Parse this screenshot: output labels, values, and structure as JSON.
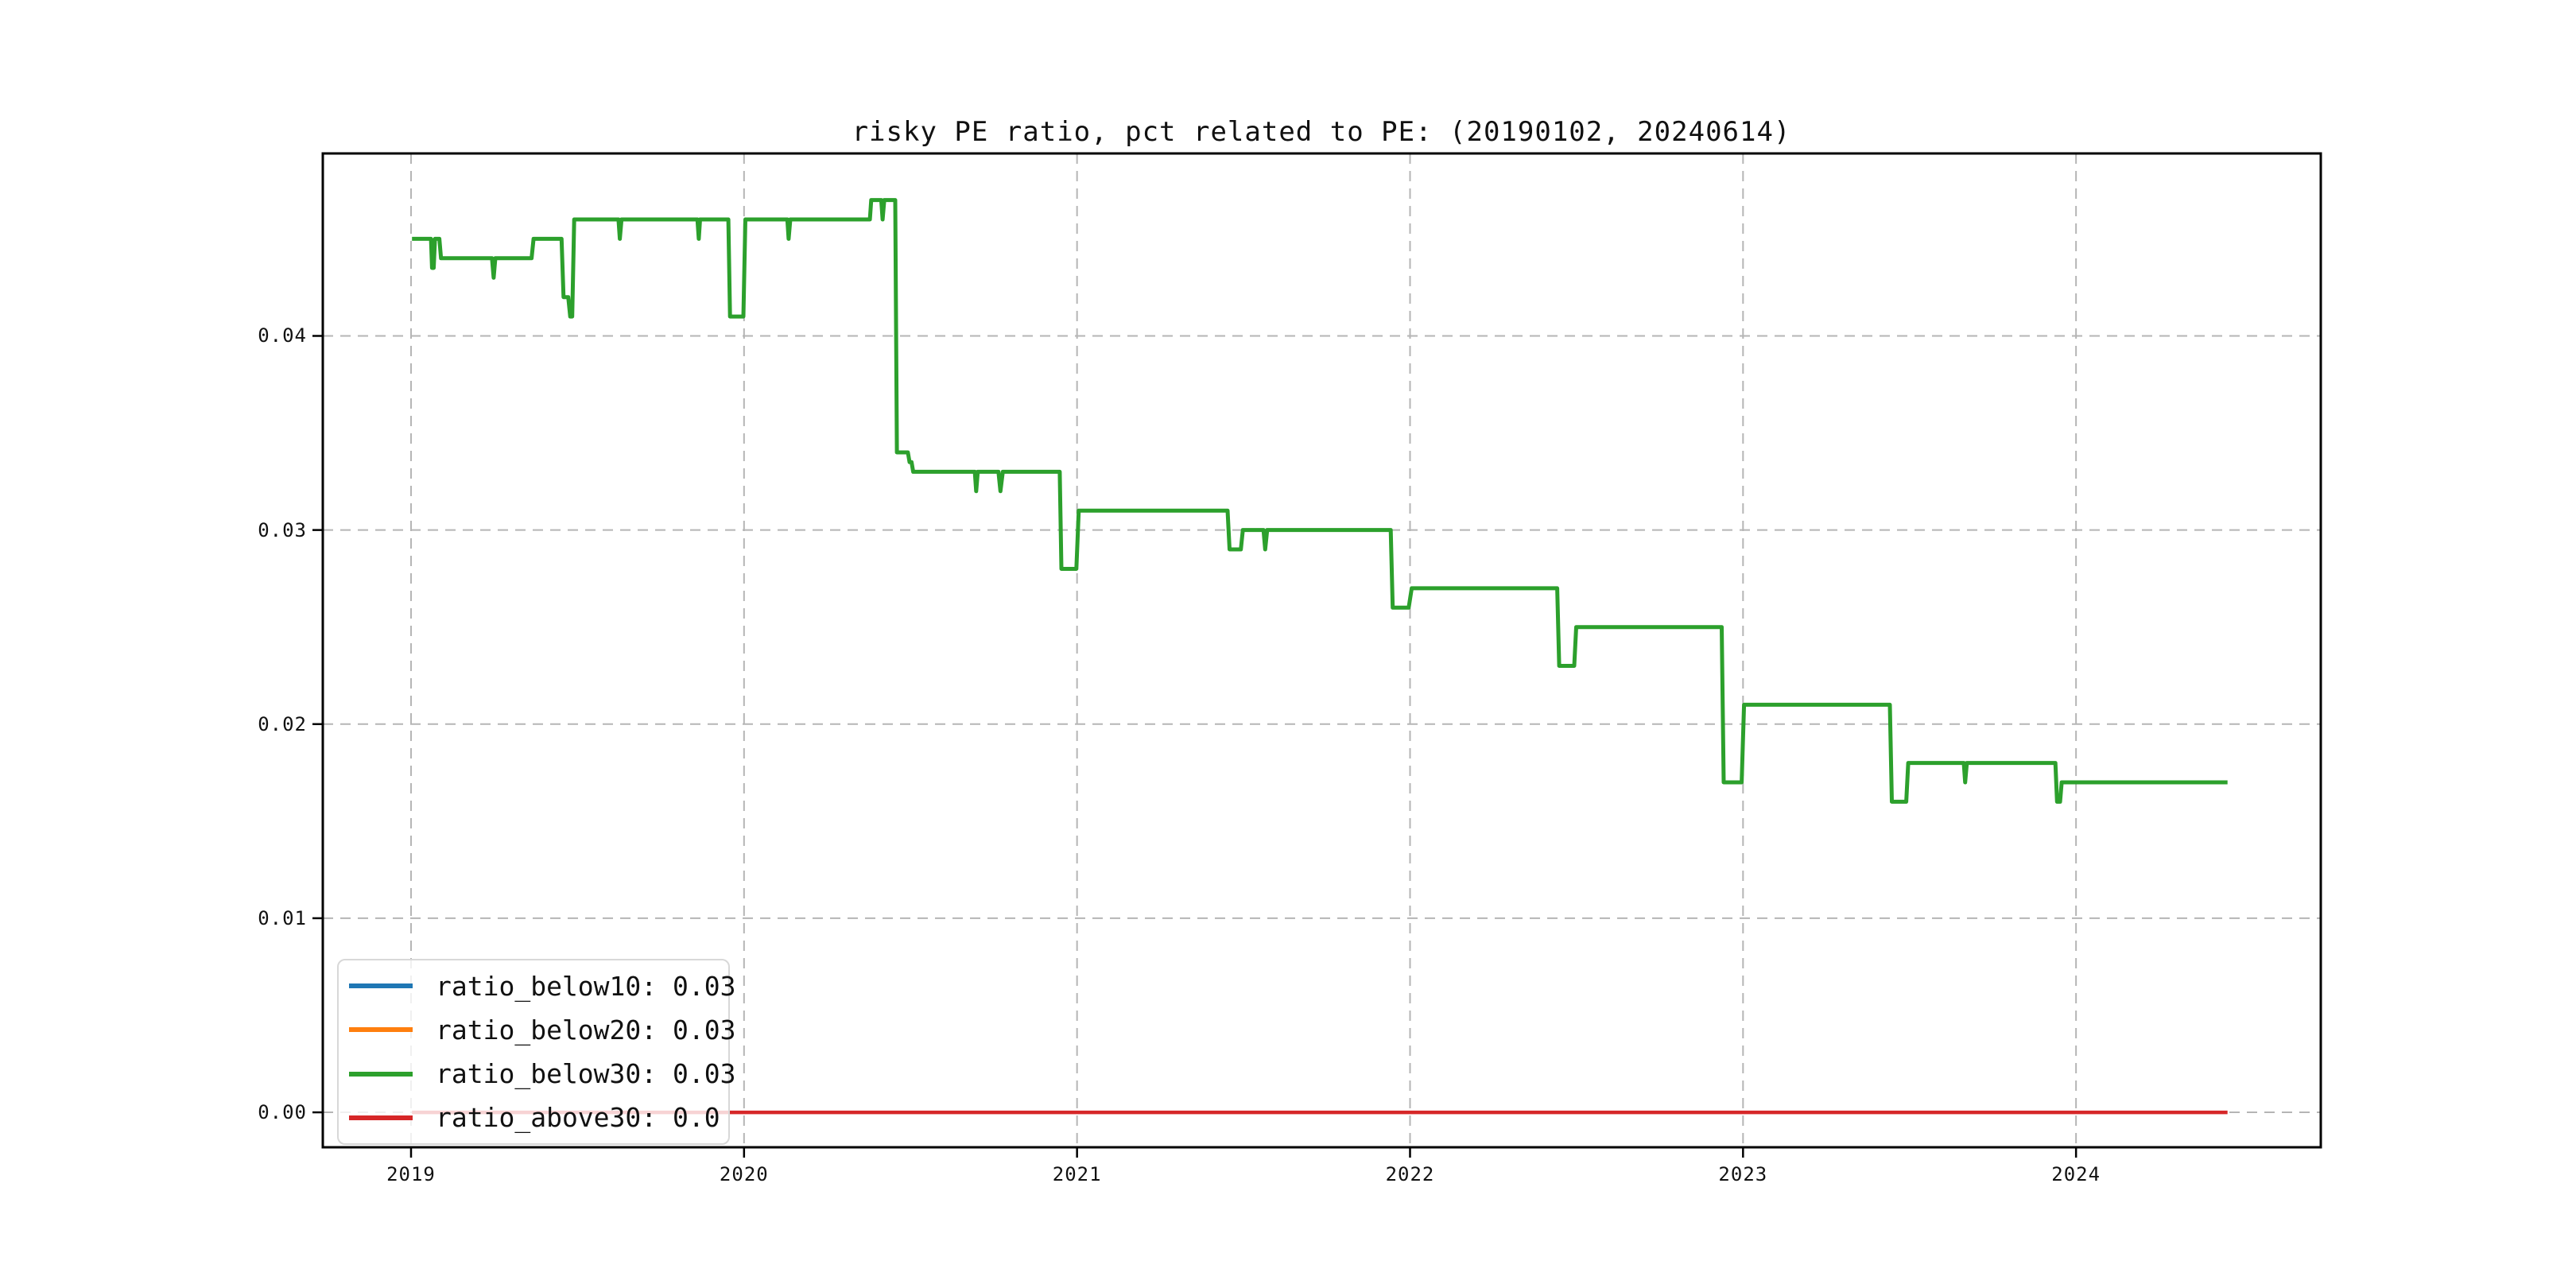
{
  "chart_data": {
    "type": "line",
    "title": "risky PE ratio, pct related to PE: (20190102, 20240614)",
    "xlabel": "",
    "ylabel": "",
    "xlim": [
      2018.735,
      2024.735
    ],
    "ylim": [
      -0.0018,
      0.0494
    ],
    "grid": true,
    "grid_style": "dashed",
    "x_tick_values": [
      2019,
      2020,
      2021,
      2022,
      2023,
      2024
    ],
    "x_tick_labels": [
      "2019",
      "2020",
      "2021",
      "2022",
      "2023",
      "2024"
    ],
    "y_tick_values": [
      0.0,
      0.01,
      0.02,
      0.03,
      0.04
    ],
    "y_tick_labels": [
      "0.00",
      "0.01",
      "0.02",
      "0.03",
      "0.04"
    ],
    "legend": {
      "position": "lower-left",
      "entries": [
        {
          "label": "ratio_below10: 0.03",
          "color": "#1f77b4"
        },
        {
          "label": "ratio_below20: 0.03",
          "color": "#ff7f0e"
        },
        {
          "label": "ratio_below30: 0.03",
          "color": "#2ca02c"
        },
        {
          "label": "ratio_above30: 0.0",
          "color": "#d62728"
        }
      ]
    },
    "series": [
      {
        "name": "ratio_below10",
        "color": "#1f77b4",
        "visible": false
      },
      {
        "name": "ratio_below20",
        "color": "#ff7f0e",
        "visible": false
      },
      {
        "name": "ratio_below30",
        "color": "#2ca02c",
        "visible": true,
        "linewidth": 5,
        "points": [
          [
            2019.003,
            0.045
          ],
          [
            2019.06,
            0.045
          ],
          [
            2019.063,
            0.0435
          ],
          [
            2019.068,
            0.0435
          ],
          [
            2019.072,
            0.045
          ],
          [
            2019.085,
            0.045
          ],
          [
            2019.09,
            0.044
          ],
          [
            2019.243,
            0.044
          ],
          [
            2019.248,
            0.043
          ],
          [
            2019.253,
            0.044
          ],
          [
            2019.362,
            0.044
          ],
          [
            2019.368,
            0.045
          ],
          [
            2019.452,
            0.045
          ],
          [
            2019.458,
            0.042
          ],
          [
            2019.472,
            0.042
          ],
          [
            2019.478,
            0.041
          ],
          [
            2019.484,
            0.041
          ],
          [
            2019.49,
            0.046
          ],
          [
            2019.623,
            0.046
          ],
          [
            2019.627,
            0.045
          ],
          [
            2019.632,
            0.046
          ],
          [
            2019.86,
            0.046
          ],
          [
            2019.864,
            0.045
          ],
          [
            2019.868,
            0.046
          ],
          [
            2019.953,
            0.046
          ],
          [
            2019.958,
            0.041
          ],
          [
            2019.998,
            0.041
          ],
          [
            2020.004,
            0.046
          ],
          [
            2020.13,
            0.046
          ],
          [
            2020.134,
            0.045
          ],
          [
            2020.139,
            0.046
          ],
          [
            2020.378,
            0.046
          ],
          [
            2020.382,
            0.047
          ],
          [
            2020.412,
            0.047
          ],
          [
            2020.416,
            0.046
          ],
          [
            2020.421,
            0.047
          ],
          [
            2020.454,
            0.047
          ],
          [
            2020.459,
            0.034
          ],
          [
            2020.492,
            0.034
          ],
          [
            2020.497,
            0.0335
          ],
          [
            2020.503,
            0.0335
          ],
          [
            2020.508,
            0.033
          ],
          [
            2020.693,
            0.033
          ],
          [
            2020.697,
            0.032
          ],
          [
            2020.702,
            0.033
          ],
          [
            2020.764,
            0.033
          ],
          [
            2020.77,
            0.032
          ],
          [
            2020.777,
            0.033
          ],
          [
            2020.948,
            0.033
          ],
          [
            2020.953,
            0.028
          ],
          [
            2020.998,
            0.028
          ],
          [
            2021.005,
            0.031
          ],
          [
            2021.452,
            0.031
          ],
          [
            2021.458,
            0.029
          ],
          [
            2021.492,
            0.029
          ],
          [
            2021.498,
            0.03
          ],
          [
            2021.56,
            0.03
          ],
          [
            2021.565,
            0.029
          ],
          [
            2021.571,
            0.03
          ],
          [
            2021.942,
            0.03
          ],
          [
            2021.948,
            0.026
          ],
          [
            2021.996,
            0.026
          ],
          [
            2022.005,
            0.027
          ],
          [
            2022.442,
            0.027
          ],
          [
            2022.448,
            0.023
          ],
          [
            2022.493,
            0.023
          ],
          [
            2022.499,
            0.025
          ],
          [
            2022.936,
            0.025
          ],
          [
            2022.942,
            0.017
          ],
          [
            2022.996,
            0.017
          ],
          [
            2023.003,
            0.021
          ],
          [
            2023.441,
            0.021
          ],
          [
            2023.447,
            0.016
          ],
          [
            2023.49,
            0.016
          ],
          [
            2023.496,
            0.018
          ],
          [
            2023.663,
            0.018
          ],
          [
            2023.667,
            0.017
          ],
          [
            2023.672,
            0.018
          ],
          [
            2023.938,
            0.018
          ],
          [
            2023.943,
            0.016
          ],
          [
            2023.952,
            0.016
          ],
          [
            2023.957,
            0.017
          ],
          [
            2024.455,
            0.017
          ]
        ]
      },
      {
        "name": "ratio_above30",
        "color": "#d62728",
        "visible": true,
        "linewidth": 4.5,
        "points": [
          [
            2019.003,
            0.0
          ],
          [
            2024.455,
            0.0
          ]
        ]
      }
    ]
  }
}
